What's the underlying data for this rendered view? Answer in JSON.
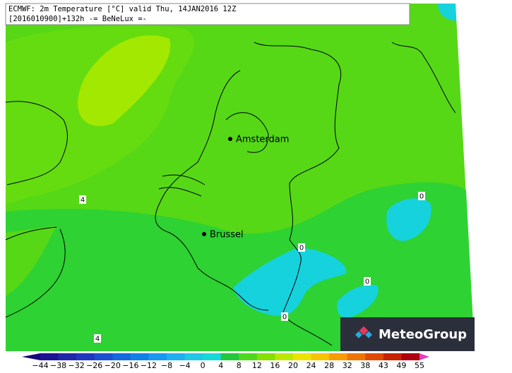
{
  "header": {
    "line1": "ECMWF: 2m Temperature [°C] valid Thu, 14JAN2016 12Z",
    "line2": "[2016010900]+132h -= BeNeLux =-"
  },
  "cities": [
    {
      "label": "Amsterdam"
    },
    {
      "label": "Brussel"
    }
  ],
  "contour_labels": [
    "4",
    "0",
    "0",
    "0",
    "0",
    "4"
  ],
  "logo": {
    "text": "MeteoGroup"
  },
  "legend": {
    "ticks": [
      "−44",
      "−38",
      "−32",
      "−26",
      "−20",
      "−16",
      "−12",
      "−8",
      "−4",
      "0",
      "4",
      "8",
      "12",
      "16",
      "20",
      "24",
      "28",
      "32",
      "38",
      "43",
      "49",
      "55"
    ],
    "colors": [
      "#14087a",
      "#1c1494",
      "#2028aa",
      "#2038c0",
      "#1a50d2",
      "#1468e0",
      "#1280ea",
      "#1898f0",
      "#1eb0f0",
      "#1ec8e6",
      "#16d8d8",
      "#22c83c",
      "#50d820",
      "#86e000",
      "#bce800",
      "#ece400",
      "#f8c400",
      "#f89c00",
      "#f07400",
      "#e04a00",
      "#c82400",
      "#b00010",
      "#e040c0"
    ]
  }
}
